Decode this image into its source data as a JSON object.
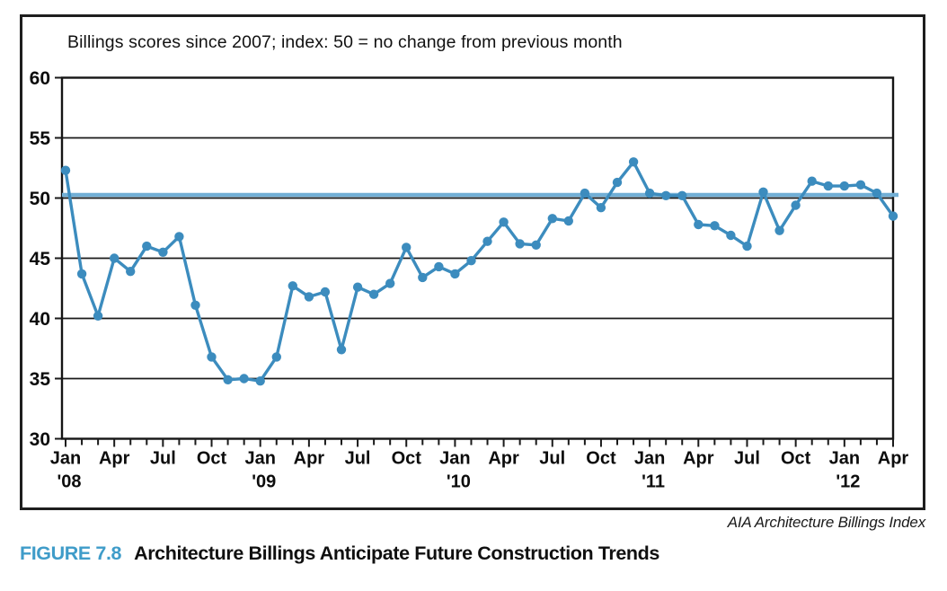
{
  "figure": {
    "source_credit": "AIA Architecture Billings Index",
    "caption_label": "FIGURE 7.8",
    "caption_text": "Architecture Billings Anticipate Future Construction Trends",
    "caption_label_color": "#3F9CC9"
  },
  "chart_data": {
    "type": "line",
    "title": "Billings scores since 2007; index: 50 = no change from previous month",
    "xlabel": "",
    "ylabel": "",
    "ylim": [
      30,
      60
    ],
    "ytick_step": 5,
    "y_tick_labels": [
      "60",
      "55",
      "50",
      "45",
      "40",
      "35",
      "30"
    ],
    "grid": "horizontal",
    "reference_line_value": 50,
    "legend": "none",
    "line_color": "#3C8CBE",
    "reference_line_color": "#72AFD5",
    "grid_color": "#1a1a1a",
    "categories": [
      "Jan '08",
      "Feb '08",
      "Mar '08",
      "Apr '08",
      "May '08",
      "Jun '08",
      "Jul '08",
      "Aug '08",
      "Sep '08",
      "Oct '08",
      "Nov '08",
      "Dec '08",
      "Jan '09",
      "Feb '09",
      "Mar '09",
      "Apr '09",
      "May '09",
      "Jun '09",
      "Jul '09",
      "Aug '09",
      "Sep '09",
      "Oct '09",
      "Nov '09",
      "Dec '09",
      "Jan '10",
      "Feb '10",
      "Mar '10",
      "Apr '10",
      "May '10",
      "Jun '10",
      "Jul '10",
      "Aug '10",
      "Sep '10",
      "Oct '10",
      "Nov '10",
      "Dec '10",
      "Jan '11",
      "Feb '11",
      "Mar '11",
      "Apr '11",
      "May '11",
      "Jun '11",
      "Jul '11",
      "Aug '11",
      "Sep '11",
      "Oct '11",
      "Nov '11",
      "Dec '11",
      "Jan '12",
      "Feb '12",
      "Mar '12",
      "Apr '12"
    ],
    "values": [
      52.3,
      43.7,
      40.2,
      45.0,
      43.9,
      46.0,
      45.5,
      46.8,
      41.1,
      36.8,
      34.9,
      35.0,
      34.8,
      36.8,
      42.7,
      41.8,
      42.2,
      37.4,
      42.6,
      42.0,
      42.9,
      45.9,
      43.4,
      44.3,
      43.7,
      44.8,
      46.4,
      48.0,
      46.2,
      46.1,
      48.3,
      48.1,
      50.4,
      49.2,
      51.3,
      53.0,
      50.4,
      50.2,
      50.2,
      47.8,
      47.7,
      46.9,
      46.0,
      50.5,
      47.3,
      49.4,
      51.4,
      51.0,
      51.0,
      51.1,
      50.4,
      48.5
    ],
    "x_axis_labels": [
      {
        "month_index": 0,
        "label": "Jan",
        "year": "'08"
      },
      {
        "month_index": 3,
        "label": "Apr"
      },
      {
        "month_index": 6,
        "label": "Jul"
      },
      {
        "month_index": 9,
        "label": "Oct"
      },
      {
        "month_index": 12,
        "label": "Jan",
        "year": "'09"
      },
      {
        "month_index": 15,
        "label": "Apr"
      },
      {
        "month_index": 18,
        "label": "Jul"
      },
      {
        "month_index": 21,
        "label": "Oct"
      },
      {
        "month_index": 24,
        "label": "Jan",
        "year": "'10"
      },
      {
        "month_index": 27,
        "label": "Apr"
      },
      {
        "month_index": 30,
        "label": "Jul"
      },
      {
        "month_index": 33,
        "label": "Oct"
      },
      {
        "month_index": 36,
        "label": "Jan",
        "year": "'11"
      },
      {
        "month_index": 39,
        "label": "Apr"
      },
      {
        "month_index": 42,
        "label": "Jul"
      },
      {
        "month_index": 45,
        "label": "Oct"
      },
      {
        "month_index": 48,
        "label": "Jan",
        "year": "'12"
      },
      {
        "month_index": 51,
        "label": "Apr"
      }
    ]
  }
}
